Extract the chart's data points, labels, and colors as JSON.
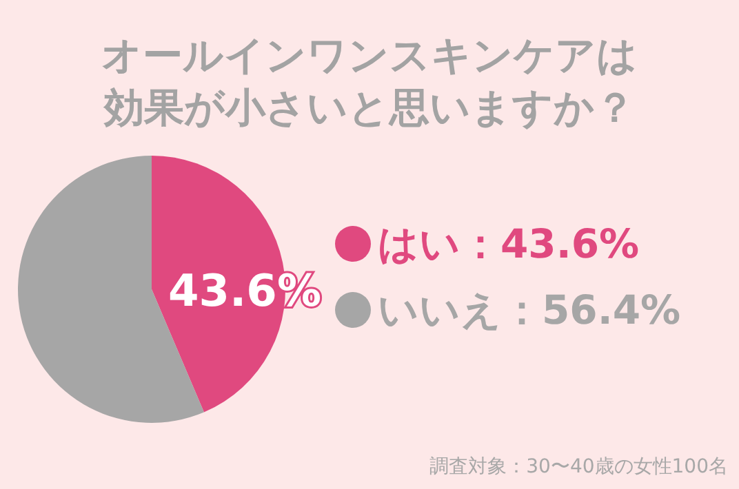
{
  "chart_data": {
    "type": "pie",
    "title": "オールインワンスキンケアは効果が小さいと思いますか？",
    "categories": [
      "はい：43.6%",
      "いいえ：56.4%"
    ],
    "values": [
      43.6,
      56.4
    ],
    "colors": [
      "#e0497f",
      "#a6a6a6"
    ],
    "value_labels": [
      "43.6%",
      null
    ],
    "legend": "right",
    "annotations": [
      "調査対象：30〜40歳の女性100名"
    ]
  }
}
